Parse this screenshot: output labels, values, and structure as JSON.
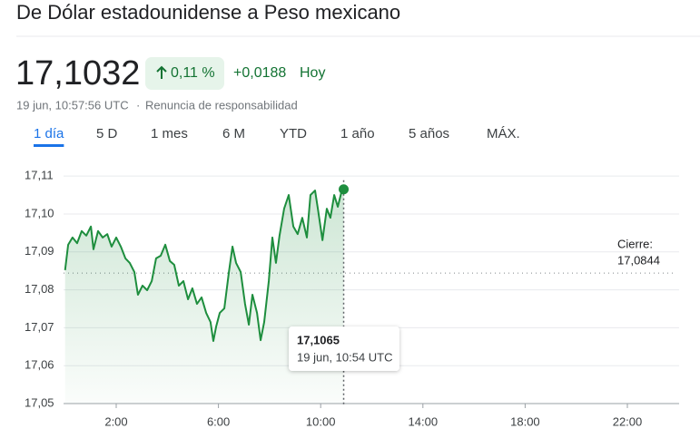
{
  "header": {
    "title": "De Dólar estadounidense a Peso mexicano",
    "price": "17,1032",
    "change_percent": "0,11 %",
    "change": "+0,0188",
    "period": "Hoy",
    "timestamp": "19 jun, 10:57:56 UTC",
    "separator": "·",
    "disclaimer": "Renuncia de responsabilidad"
  },
  "tabs": {
    "items": [
      "1 día",
      "5 D",
      "1 mes",
      "6 M",
      "YTD",
      "1 año",
      "5 años",
      "MÁX."
    ],
    "selected_index": 0
  },
  "chart_data": {
    "type": "line",
    "color": "#1e8e3e",
    "grid": true,
    "x": [
      0,
      0.12,
      0.29,
      0.47,
      0.65,
      0.83,
      1.01,
      1.11,
      1.29,
      1.47,
      1.65,
      1.82,
      2.0,
      2.18,
      2.36,
      2.53,
      2.71,
      2.85,
      3.03,
      3.21,
      3.39,
      3.56,
      3.74,
      3.92,
      4.1,
      4.27,
      4.45,
      4.63,
      4.81,
      4.98,
      5.16,
      5.34,
      5.52,
      5.69,
      5.8,
      5.91,
      6.05,
      6.23,
      6.41,
      6.55,
      6.69,
      6.87,
      7.04,
      7.19,
      7.33,
      7.51,
      7.65,
      7.79,
      7.97,
      8.11,
      8.25,
      8.39,
      8.57,
      8.75,
      8.93,
      9.1,
      9.28,
      9.46,
      9.6,
      9.78,
      9.89,
      10.07,
      10.24,
      10.38,
      10.53,
      10.67,
      10.81,
      10.9
    ],
    "values": [
      17.0852,
      17.0919,
      17.0938,
      17.0923,
      17.0955,
      17.0943,
      17.0967,
      17.0907,
      17.0955,
      17.0938,
      17.0947,
      17.0914,
      17.0938,
      17.0914,
      17.0883,
      17.0871,
      17.0847,
      17.0787,
      17.0811,
      17.0799,
      17.0823,
      17.0883,
      17.089,
      17.0919,
      17.0876,
      17.0866,
      17.0811,
      17.0823,
      17.0775,
      17.0804,
      17.0763,
      17.078,
      17.0739,
      17.0715,
      17.0665,
      17.0703,
      17.0739,
      17.0751,
      17.0847,
      17.0914,
      17.0871,
      17.0847,
      17.0763,
      17.0708,
      17.0787,
      17.0739,
      17.0667,
      17.0715,
      17.0823,
      17.0938,
      17.0871,
      17.0943,
      17.1014,
      17.105,
      17.0967,
      17.0947,
      17.099,
      17.0938,
      17.105,
      17.1062,
      17.1014,
      17.0931,
      17.1014,
      17.099,
      17.105,
      17.1019,
      17.1057,
      17.1065
    ],
    "xlim": [
      0,
      24
    ],
    "ylim": [
      17.05,
      17.112
    ],
    "xticks": [
      {
        "value": 2,
        "label": "2:00"
      },
      {
        "value": 6,
        "label": "6:00"
      },
      {
        "value": 10,
        "label": "10:00"
      },
      {
        "value": 14,
        "label": "14:00"
      },
      {
        "value": 18,
        "label": "18:00"
      },
      {
        "value": 22,
        "label": "22:00"
      }
    ],
    "yticks": [
      {
        "value": 17.05,
        "label": "17,05"
      },
      {
        "value": 17.06,
        "label": "17,06"
      },
      {
        "value": 17.07,
        "label": "17,07"
      },
      {
        "value": 17.08,
        "label": "17,08"
      },
      {
        "value": 17.09,
        "label": "17,09"
      },
      {
        "value": 17.1,
        "label": "17,10"
      },
      {
        "value": 17.11,
        "label": "17,11"
      }
    ],
    "reference_line": {
      "value": 17.0844,
      "label": "Cierre:",
      "value_label": "17,0844"
    },
    "tooltip": {
      "x": 10.9,
      "value": 17.1065,
      "value_label": "17,1065",
      "time_label": "19 jun, 10:54 UTC"
    }
  }
}
